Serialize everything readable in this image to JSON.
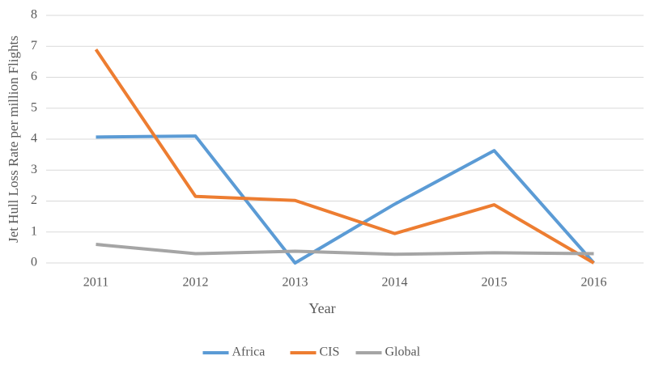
{
  "chart_data": {
    "type": "line",
    "x_label": "Year",
    "y_label": "Jet Hull Loss Rate per million Flights",
    "categories": [
      "2011",
      "2012",
      "2013",
      "2014",
      "2015",
      "2016"
    ],
    "series": [
      {
        "name": "Africa",
        "color": "#5b9bd5",
        "values": [
          4.07,
          4.1,
          0,
          1.9,
          3.63,
          0
        ]
      },
      {
        "name": "CIS",
        "color": "#ed7d31",
        "values": [
          6.9,
          2.15,
          2.02,
          0.95,
          1.88,
          0
        ]
      },
      {
        "name": "Global",
        "color": "#a5a5a5",
        "values": [
          0.6,
          0.3,
          0.38,
          0.28,
          0.33,
          0.3
        ]
      }
    ],
    "ylim": [
      0,
      8
    ],
    "yticks": [
      0,
      1,
      2,
      3,
      4,
      5,
      6,
      7,
      8
    ],
    "grid": true,
    "legend": "bottom"
  }
}
